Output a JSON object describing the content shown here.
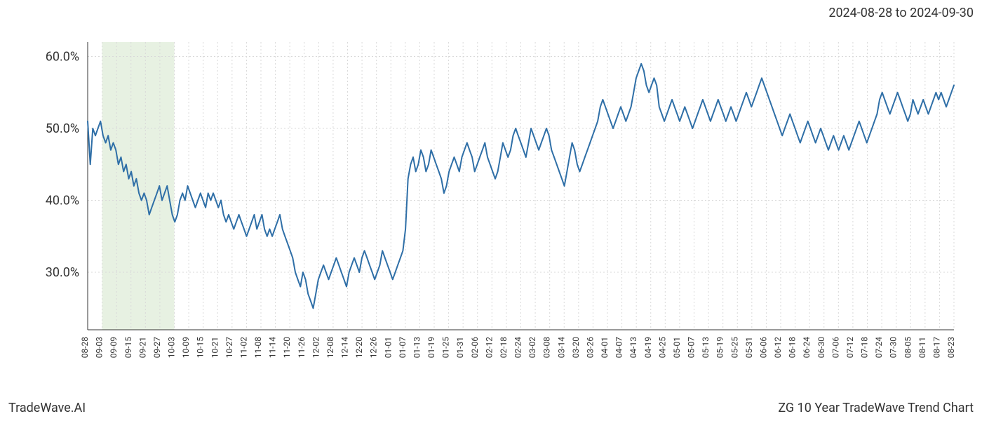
{
  "header": {
    "date_range": "2024-08-28 to 2024-09-30"
  },
  "footer": {
    "brand": "TradeWave.AI",
    "chart_title": "ZG 10 Year TradeWave Trend Chart"
  },
  "chart": {
    "type": "line",
    "background_color": "#ffffff",
    "grid_color": "#d9d9d9",
    "axis_color": "#333333",
    "line_color": "#2f6fa7",
    "line_width": 2,
    "highlight_fill": "#d7e7cf",
    "highlight_opacity": 0.6,
    "highlight_range_idx": [
      1,
      6
    ],
    "ylim": [
      22,
      62
    ],
    "y_ticks": [
      30,
      40,
      50,
      60
    ],
    "y_tick_labels": [
      "30.0%",
      "40.0%",
      "50.0%",
      "60.0%"
    ],
    "y_label_fontsize": 18,
    "x_label_fontsize": 12,
    "x_labels": [
      "08-28",
      "09-03",
      "09-09",
      "09-15",
      "09-21",
      "09-27",
      "10-03",
      "10-09",
      "10-15",
      "10-21",
      "10-27",
      "11-02",
      "11-08",
      "11-14",
      "11-20",
      "11-26",
      "12-02",
      "12-08",
      "12-14",
      "12-20",
      "12-26",
      "01-01",
      "01-07",
      "01-13",
      "01-19",
      "01-25",
      "01-31",
      "02-06",
      "02-12",
      "02-18",
      "02-24",
      "03-02",
      "03-08",
      "03-14",
      "03-20",
      "03-26",
      "04-01",
      "04-07",
      "04-13",
      "04-19",
      "04-25",
      "05-01",
      "05-07",
      "05-13",
      "05-19",
      "05-25",
      "05-31",
      "06-06",
      "06-12",
      "06-18",
      "06-24",
      "06-30",
      "07-06",
      "07-12",
      "07-18",
      "07-24",
      "07-30",
      "08-05",
      "08-11",
      "08-17",
      "08-23"
    ],
    "series": [
      51,
      45,
      50,
      49,
      50,
      51,
      49,
      48,
      49,
      47,
      48,
      47,
      45,
      46,
      44,
      45,
      43,
      44,
      42,
      43,
      41,
      40,
      41,
      40,
      38,
      39,
      40,
      41,
      42,
      40,
      41,
      42,
      40,
      38,
      37,
      38,
      40,
      41,
      40,
      42,
      41,
      40,
      39,
      40,
      41,
      40,
      39,
      41,
      40,
      41,
      40,
      39,
      40,
      38,
      37,
      38,
      37,
      36,
      37,
      38,
      37,
      36,
      35,
      36,
      37,
      38,
      36,
      37,
      38,
      36,
      35,
      36,
      35,
      36,
      37,
      38,
      36,
      35,
      34,
      33,
      32,
      30,
      29,
      28,
      30,
      29,
      27,
      26,
      25,
      27,
      29,
      30,
      31,
      30,
      29,
      30,
      31,
      32,
      31,
      30,
      29,
      28,
      30,
      31,
      32,
      31,
      30,
      32,
      33,
      32,
      31,
      30,
      29,
      30,
      31,
      33,
      32,
      31,
      30,
      29,
      30,
      31,
      32,
      33,
      36,
      43,
      45,
      46,
      44,
      45,
      47,
      46,
      44,
      45,
      47,
      46,
      45,
      44,
      43,
      41,
      42,
      44,
      45,
      46,
      45,
      44,
      46,
      47,
      48,
      47,
      46,
      44,
      45,
      46,
      47,
      48,
      46,
      45,
      44,
      43,
      44,
      46,
      48,
      47,
      46,
      47,
      49,
      50,
      49,
      48,
      47,
      46,
      48,
      50,
      49,
      48,
      47,
      48,
      49,
      50,
      49,
      47,
      46,
      45,
      44,
      43,
      42,
      44,
      46,
      48,
      47,
      45,
      44,
      45,
      46,
      47,
      48,
      49,
      50,
      51,
      53,
      54,
      53,
      52,
      51,
      50,
      51,
      52,
      53,
      52,
      51,
      52,
      53,
      55,
      57,
      58,
      59,
      58,
      56,
      55,
      56,
      57,
      56,
      53,
      52,
      51,
      52,
      53,
      54,
      53,
      52,
      51,
      52,
      53,
      52,
      51,
      50,
      51,
      52,
      53,
      54,
      53,
      52,
      51,
      52,
      53,
      54,
      53,
      52,
      51,
      52,
      53,
      52,
      51,
      52,
      53,
      54,
      55,
      54,
      53,
      54,
      55,
      56,
      57,
      56,
      55,
      54,
      53,
      52,
      51,
      50,
      49,
      50,
      51,
      52,
      51,
      50,
      49,
      48,
      49,
      50,
      51,
      50,
      49,
      48,
      49,
      50,
      49,
      48,
      47,
      48,
      49,
      48,
      47,
      48,
      49,
      48,
      47,
      48,
      49,
      50,
      51,
      50,
      49,
      48,
      49,
      50,
      51,
      52,
      54,
      55,
      54,
      53,
      52,
      53,
      54,
      55,
      54,
      53,
      52,
      51,
      52,
      54,
      53,
      52,
      53,
      54,
      53,
      52,
      53,
      54,
      55,
      54,
      55,
      54,
      53,
      54,
      55,
      56
    ]
  }
}
